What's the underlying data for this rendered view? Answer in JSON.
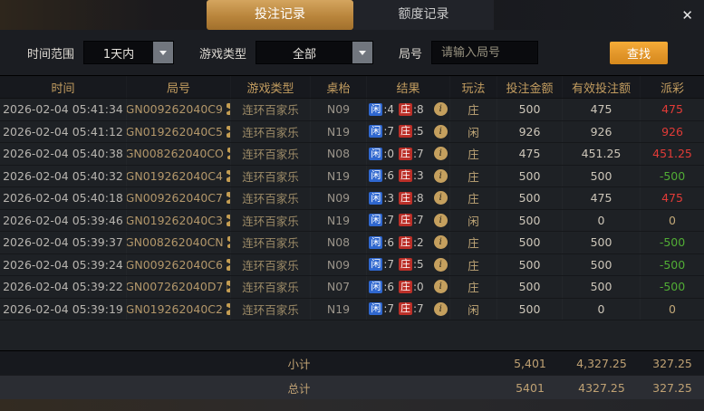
{
  "tabs": [
    {
      "label": "投注记录",
      "active": true
    },
    {
      "label": "额度记录",
      "active": false
    }
  ],
  "close_glyph": "✕",
  "filters": {
    "time_range_label": "时间范围",
    "time_range_value": "1天内",
    "game_type_label": "游戏类型",
    "game_type_value": "全部",
    "round_label": "局号",
    "round_placeholder": "请输入局号",
    "search_label": "查找"
  },
  "table": {
    "headers": [
      "时间",
      "局号",
      "游戏类型",
      "桌枱",
      "结果",
      "玩法",
      "投注金额",
      "有效投注额",
      "派彩"
    ],
    "rows": [
      {
        "time": "2026-02-04 05:41:34",
        "round": "GN009262040C9",
        "game": "连环百家乐",
        "table": "N09",
        "player_label": "闲",
        "player_score": ":4",
        "banker_label": "庄",
        "banker_score": ":8",
        "play": "庄",
        "bet": "500",
        "valid": "475",
        "payout": "475",
        "payout_class": "positive"
      },
      {
        "time": "2026-02-04 05:41:12",
        "round": "GN019262040C5",
        "game": "连环百家乐",
        "table": "N19",
        "player_label": "闲",
        "player_score": ":7",
        "banker_label": "庄",
        "banker_score": ":5",
        "play": "闲",
        "bet": "926",
        "valid": "926",
        "payout": "926",
        "payout_class": "positive"
      },
      {
        "time": "2026-02-04 05:40:38",
        "round": "GN008262040CO",
        "game": "连环百家乐",
        "table": "N08",
        "player_label": "闲",
        "player_score": ":0",
        "banker_label": "庄",
        "banker_score": ":7",
        "play": "庄",
        "bet": "475",
        "valid": "451.25",
        "payout": "451.25",
        "payout_class": "positive"
      },
      {
        "time": "2026-02-04 05:40:32",
        "round": "GN019262040C4",
        "game": "连环百家乐",
        "table": "N19",
        "player_label": "闲",
        "player_score": ":6",
        "banker_label": "庄",
        "banker_score": ":3",
        "play": "庄",
        "bet": "500",
        "valid": "500",
        "payout": "-500",
        "payout_class": "negative"
      },
      {
        "time": "2026-02-04 05:40:18",
        "round": "GN009262040C7",
        "game": "连环百家乐",
        "table": "N09",
        "player_label": "闲",
        "player_score": ":3",
        "banker_label": "庄",
        "banker_score": ":8",
        "play": "庄",
        "bet": "500",
        "valid": "475",
        "payout": "475",
        "payout_class": "positive"
      },
      {
        "time": "2026-02-04 05:39:46",
        "round": "GN019262040C3",
        "game": "连环百家乐",
        "table": "N19",
        "player_label": "闲",
        "player_score": ":7",
        "banker_label": "庄",
        "banker_score": ":7",
        "play": "闲",
        "bet": "500",
        "valid": "0",
        "payout": "0",
        "payout_class": "zero"
      },
      {
        "time": "2026-02-04 05:39:37",
        "round": "GN008262040CN",
        "game": "连环百家乐",
        "table": "N08",
        "player_label": "闲",
        "player_score": ":6",
        "banker_label": "庄",
        "banker_score": ":2",
        "play": "庄",
        "bet": "500",
        "valid": "500",
        "payout": "-500",
        "payout_class": "negative"
      },
      {
        "time": "2026-02-04 05:39:24",
        "round": "GN009262040C6",
        "game": "连环百家乐",
        "table": "N09",
        "player_label": "闲",
        "player_score": ":7",
        "banker_label": "庄",
        "banker_score": ":5",
        "play": "庄",
        "bet": "500",
        "valid": "500",
        "payout": "-500",
        "payout_class": "negative"
      },
      {
        "time": "2026-02-04 05:39:22",
        "round": "GN007262040D7",
        "game": "连环百家乐",
        "table": "N07",
        "player_label": "闲",
        "player_score": ":6",
        "banker_label": "庄",
        "banker_score": ":0",
        "play": "庄",
        "bet": "500",
        "valid": "500",
        "payout": "-500",
        "payout_class": "negative"
      },
      {
        "time": "2026-02-04 05:39:19",
        "round": "GN019262040C2",
        "game": "连环百家乐",
        "table": "N19",
        "player_label": "闲",
        "player_score": ":7",
        "banker_label": "庄",
        "banker_score": ":7",
        "play": "闲",
        "bet": "500",
        "valid": "0",
        "payout": "0",
        "payout_class": "zero"
      }
    ]
  },
  "footer": {
    "subtotal": {
      "label": "小计",
      "bet": "5,401",
      "valid": "4,327.25",
      "payout": "327.25"
    },
    "total": {
      "label": "总计",
      "bet": "5401",
      "valid": "4327.25",
      "payout": "327.25"
    }
  },
  "colors": {
    "accent_gold": "#b9853c",
    "button_orange": "#e2962a",
    "header_gold": "#c39d60",
    "player_blue": "#2f67cf",
    "banker_red": "#bb2f28",
    "payout_win_red": "#e13b37",
    "payout_lose_green": "#51ad35"
  }
}
